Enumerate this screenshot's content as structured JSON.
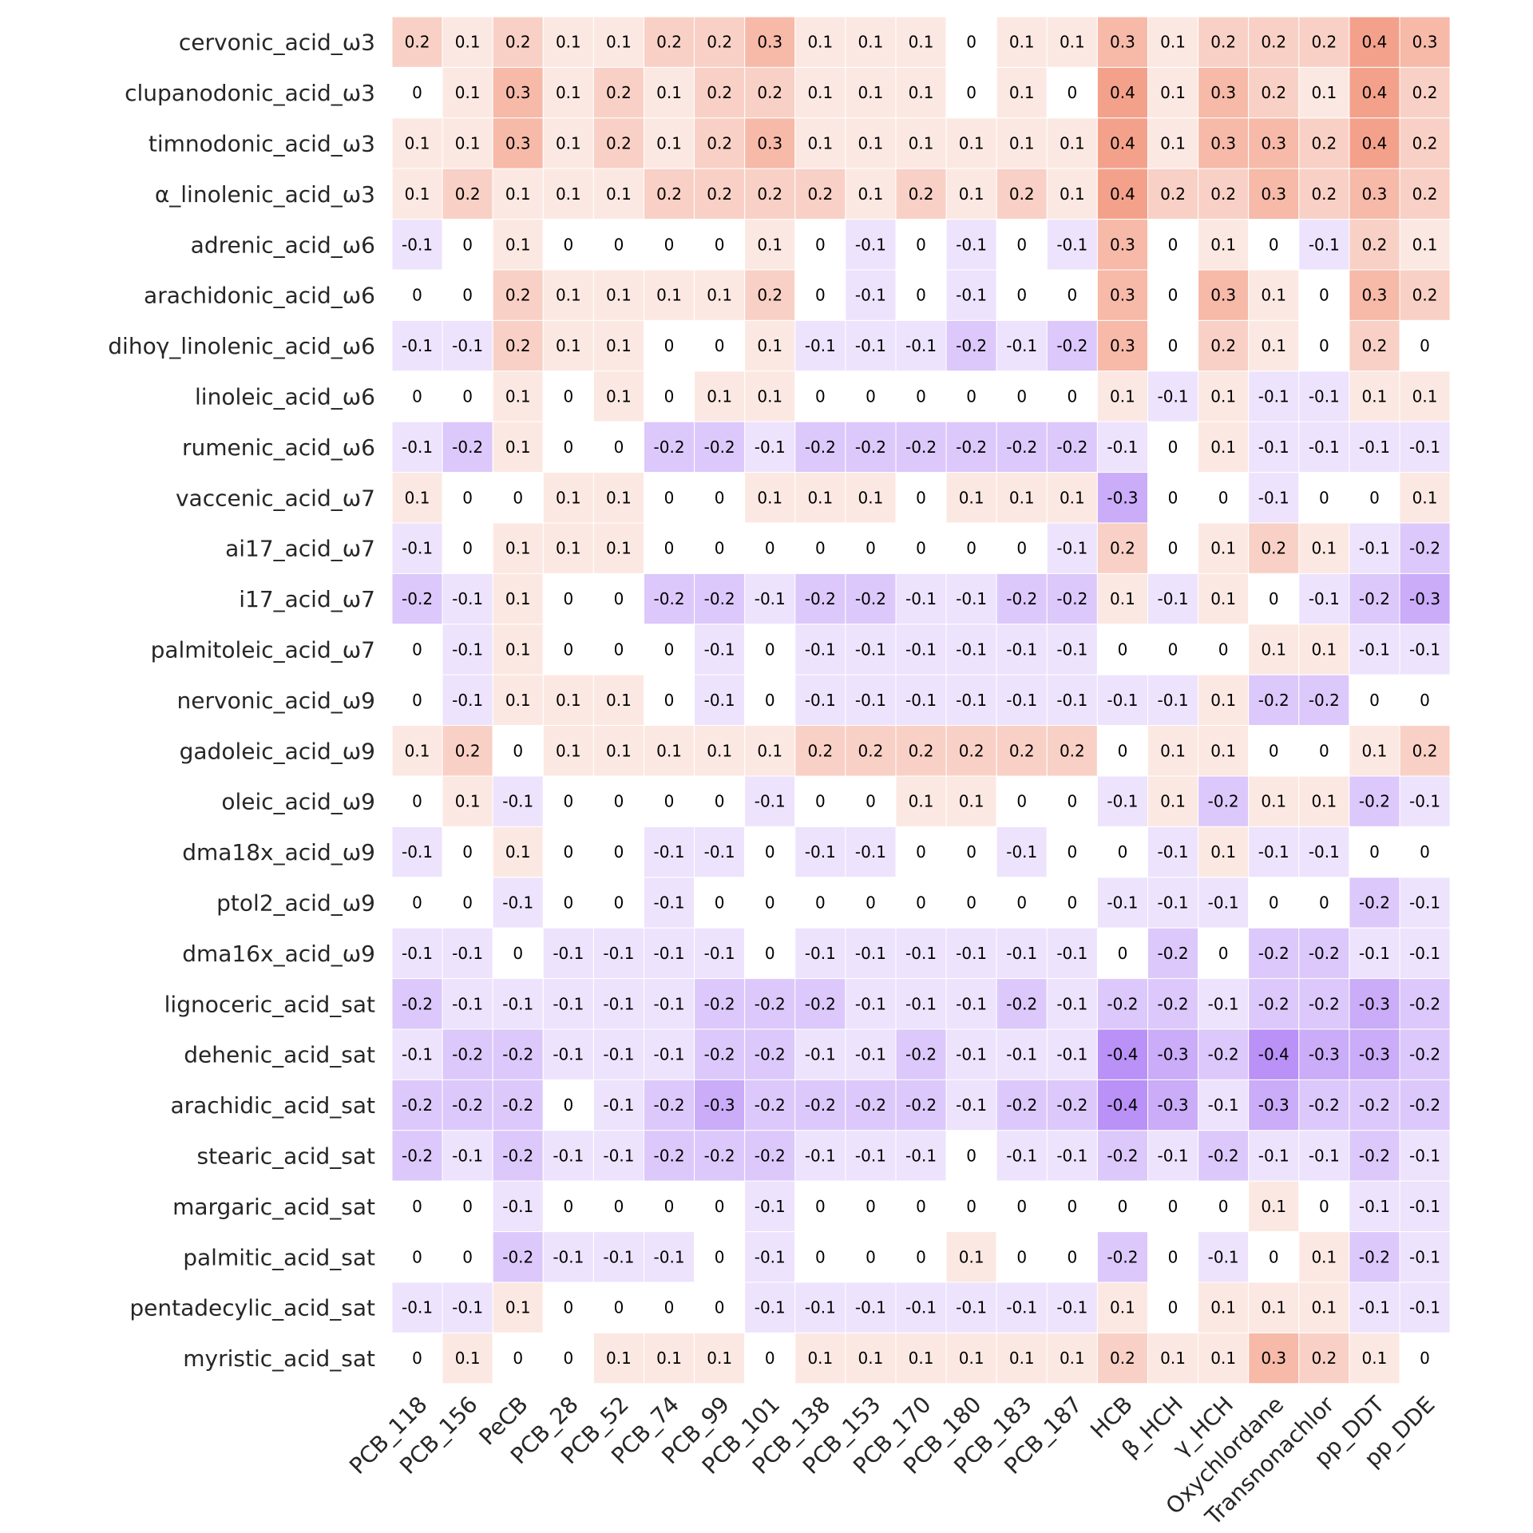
{
  "chart_data": {
    "type": "heatmap",
    "title": "",
    "xlabel": "",
    "ylabel": "",
    "colormap": {
      "negative_color": "#a775f5",
      "zero_color": "#ffffff",
      "positive_color": "#f18a6e",
      "vmin": -0.5,
      "vmax": 0.5
    },
    "columns": [
      "PCB_118",
      "PCB_156",
      "PeCB",
      "PCB_28",
      "PCB_52",
      "PCB_74",
      "PCB_99",
      "PCB_101",
      "PCB_138",
      "PCB_153",
      "PCB_170",
      "PCB_180",
      "PCB_183",
      "PCB_187",
      "HCB",
      "β_HCH",
      "γ_HCH",
      "Oxychlordane",
      "Transnonachlor",
      "pp_DDT",
      "pp_DDE"
    ],
    "rows": [
      "cervonic_acid_ω3",
      "clupanodonic_acid_ω3",
      "timnodonic_acid_ω3",
      "α_linolenic_acid_ω3",
      "adrenic_acid_ω6",
      "arachidonic_acid_ω6",
      "dihoγ_linolenic_acid_ω6",
      "linoleic_acid_ω6",
      "rumenic_acid_ω6",
      "vaccenic_acid_ω7",
      "ai17_acid_ω7",
      "i17_acid_ω7",
      "palmitoleic_acid_ω7",
      "nervonic_acid_ω9",
      "gadoleic_acid_ω9",
      "oleic_acid_ω9",
      "dma18x_acid_ω9",
      "ptol2_acid_ω9",
      "dma16x_acid_ω9",
      "lignoceric_acid_sat",
      "dehenic_acid_sat",
      "arachidic_acid_sat",
      "stearic_acid_sat",
      "margaric_acid_sat",
      "palmitic_acid_sat",
      "pentadecylic_acid_sat",
      "myristic_acid_sat"
    ],
    "values": [
      [
        0.2,
        0.1,
        0.2,
        0.1,
        0.1,
        0.2,
        0.2,
        0.3,
        0.1,
        0.1,
        0.1,
        0,
        0.1,
        0.1,
        0.3,
        0.1,
        0.2,
        0.2,
        0.2,
        0.4,
        0.3
      ],
      [
        0,
        0.1,
        0.3,
        0.1,
        0.2,
        0.1,
        0.2,
        0.2,
        0.1,
        0.1,
        0.1,
        0,
        0.1,
        0,
        0.4,
        0.1,
        0.3,
        0.2,
        0.1,
        0.4,
        0.2
      ],
      [
        0.1,
        0.1,
        0.3,
        0.1,
        0.2,
        0.1,
        0.2,
        0.3,
        0.1,
        0.1,
        0.1,
        0.1,
        0.1,
        0.1,
        0.4,
        0.1,
        0.3,
        0.3,
        0.2,
        0.4,
        0.2
      ],
      [
        0.1,
        0.2,
        0.1,
        0.1,
        0.1,
        0.2,
        0.2,
        0.2,
        0.2,
        0.1,
        0.2,
        0.1,
        0.2,
        0.1,
        0.4,
        0.2,
        0.2,
        0.3,
        0.2,
        0.3,
        0.2
      ],
      [
        -0.1,
        0,
        0.1,
        0,
        0,
        0,
        0,
        0.1,
        0,
        -0.1,
        0,
        -0.1,
        0,
        -0.1,
        0.3,
        0,
        0.1,
        0,
        -0.1,
        0.2,
        0.1
      ],
      [
        0,
        0,
        0.2,
        0.1,
        0.1,
        0.1,
        0.1,
        0.2,
        0,
        -0.1,
        0,
        -0.1,
        0,
        0,
        0.3,
        0,
        0.3,
        0.1,
        0,
        0.3,
        0.2
      ],
      [
        -0.1,
        -0.1,
        0.2,
        0.1,
        0.1,
        0,
        0,
        0.1,
        -0.1,
        -0.1,
        -0.1,
        -0.2,
        -0.1,
        -0.2,
        0.3,
        0,
        0.2,
        0.1,
        0,
        0.2,
        0
      ],
      [
        0,
        0,
        0.1,
        0,
        0.1,
        0,
        0.1,
        0.1,
        0,
        0,
        0,
        0,
        0,
        0,
        0.1,
        -0.1,
        0.1,
        -0.1,
        -0.1,
        0.1,
        0.1
      ],
      [
        -0.1,
        -0.2,
        0.1,
        0,
        0,
        -0.2,
        -0.2,
        -0.1,
        -0.2,
        -0.2,
        -0.2,
        -0.2,
        -0.2,
        -0.2,
        -0.1,
        0,
        0.1,
        -0.1,
        -0.1,
        -0.1,
        -0.1
      ],
      [
        0.1,
        0,
        0,
        0.1,
        0.1,
        0,
        0,
        0.1,
        0.1,
        0.1,
        0,
        0.1,
        0.1,
        0.1,
        -0.3,
        0,
        0,
        -0.1,
        0,
        0,
        0.1
      ],
      [
        -0.1,
        0,
        0.1,
        0.1,
        0.1,
        0,
        0,
        0,
        0,
        0,
        0,
        0,
        0,
        -0.1,
        0.2,
        0,
        0.1,
        0.2,
        0.1,
        -0.1,
        -0.2
      ],
      [
        -0.2,
        -0.1,
        0.1,
        0,
        0,
        -0.2,
        -0.2,
        -0.1,
        -0.2,
        -0.2,
        -0.1,
        -0.1,
        -0.2,
        -0.2,
        0.1,
        -0.1,
        0.1,
        0,
        -0.1,
        -0.2,
        -0.3
      ],
      [
        0,
        -0.1,
        0.1,
        0,
        0,
        0,
        -0.1,
        0,
        -0.1,
        -0.1,
        -0.1,
        -0.1,
        -0.1,
        -0.1,
        0,
        0,
        0,
        0.1,
        0.1,
        -0.1,
        -0.1
      ],
      [
        0,
        -0.1,
        0.1,
        0.1,
        0.1,
        0,
        -0.1,
        0,
        -0.1,
        -0.1,
        -0.1,
        -0.1,
        -0.1,
        -0.1,
        -0.1,
        -0.1,
        0.1,
        -0.2,
        -0.2,
        0,
        0
      ],
      [
        0.1,
        0.2,
        0,
        0.1,
        0.1,
        0.1,
        0.1,
        0.1,
        0.2,
        0.2,
        0.2,
        0.2,
        0.2,
        0.2,
        0,
        0.1,
        0.1,
        0,
        0,
        0.1,
        0.2
      ],
      [
        0,
        0.1,
        -0.1,
        0,
        0,
        0,
        0,
        -0.1,
        0,
        0,
        0.1,
        0.1,
        0,
        0,
        -0.1,
        0.1,
        -0.2,
        0.1,
        0.1,
        -0.2,
        -0.1
      ],
      [
        -0.1,
        0,
        0.1,
        0,
        0,
        -0.1,
        -0.1,
        0,
        -0.1,
        -0.1,
        0,
        0,
        -0.1,
        0,
        0,
        -0.1,
        0.1,
        -0.1,
        -0.1,
        0,
        0
      ],
      [
        0,
        0,
        -0.1,
        0,
        0,
        -0.1,
        0,
        0,
        0,
        0,
        0,
        0,
        0,
        0,
        -0.1,
        -0.1,
        -0.1,
        0,
        0,
        -0.2,
        -0.1
      ],
      [
        -0.1,
        -0.1,
        0,
        -0.1,
        -0.1,
        -0.1,
        -0.1,
        0,
        -0.1,
        -0.1,
        -0.1,
        -0.1,
        -0.1,
        -0.1,
        0,
        -0.2,
        0,
        -0.2,
        -0.2,
        -0.1,
        -0.1
      ],
      [
        -0.2,
        -0.1,
        -0.1,
        -0.1,
        -0.1,
        -0.1,
        -0.2,
        -0.2,
        -0.2,
        -0.1,
        -0.1,
        -0.1,
        -0.2,
        -0.1,
        -0.2,
        -0.2,
        -0.1,
        -0.2,
        -0.2,
        -0.3,
        -0.2
      ],
      [
        -0.1,
        -0.2,
        -0.2,
        -0.1,
        -0.1,
        -0.1,
        -0.2,
        -0.2,
        -0.1,
        -0.1,
        -0.2,
        -0.1,
        -0.1,
        -0.1,
        -0.4,
        -0.3,
        -0.2,
        -0.4,
        -0.3,
        -0.3,
        -0.2
      ],
      [
        -0.2,
        -0.2,
        -0.2,
        0,
        -0.1,
        -0.2,
        -0.3,
        -0.2,
        -0.2,
        -0.2,
        -0.2,
        -0.1,
        -0.2,
        -0.2,
        -0.4,
        -0.3,
        -0.1,
        -0.3,
        -0.2,
        -0.2,
        -0.2
      ],
      [
        -0.2,
        -0.1,
        -0.2,
        -0.1,
        -0.1,
        -0.2,
        -0.2,
        -0.2,
        -0.1,
        -0.1,
        -0.1,
        0,
        -0.1,
        -0.1,
        -0.2,
        -0.1,
        -0.2,
        -0.1,
        -0.1,
        -0.2,
        -0.1
      ],
      [
        0,
        0,
        -0.1,
        0,
        0,
        0,
        0,
        -0.1,
        0,
        0,
        0,
        0,
        0,
        0,
        0,
        0,
        0,
        0.1,
        0,
        -0.1,
        -0.1
      ],
      [
        0,
        0,
        -0.2,
        -0.1,
        -0.1,
        -0.1,
        0,
        -0.1,
        0,
        0,
        0,
        0.1,
        0,
        0,
        -0.2,
        0,
        -0.1,
        0,
        0.1,
        -0.2,
        -0.1
      ],
      [
        -0.1,
        -0.1,
        0.1,
        0,
        0,
        0,
        0,
        -0.1,
        -0.1,
        -0.1,
        -0.1,
        -0.1,
        -0.1,
        -0.1,
        0.1,
        0,
        0.1,
        0.1,
        0.1,
        -0.1,
        -0.1
      ],
      [
        0,
        0.1,
        0,
        0,
        0.1,
        0.1,
        0.1,
        0,
        0.1,
        0.1,
        0.1,
        0.1,
        0.1,
        0.1,
        0.2,
        0.1,
        0.1,
        0.3,
        0.2,
        0.1,
        0
      ]
    ]
  }
}
